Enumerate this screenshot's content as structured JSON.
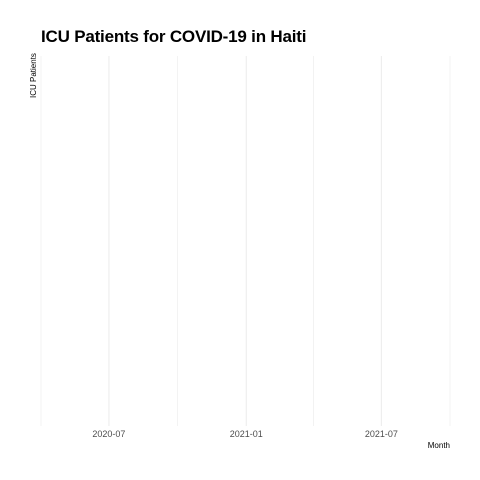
{
  "chart_data": {
    "type": "line",
    "title": "ICU Patients for COVID-19 in Haiti",
    "xlabel": "Month",
    "ylabel": "ICU Patients",
    "x_type": "date",
    "xlim": [
      "2020-04-01",
      "2021-10-01"
    ],
    "x_major_ticks": [
      "2020-07",
      "2021-01",
      "2021-07"
    ],
    "x_minor_gridlines": [
      "2020-04-01",
      "2020-10-01",
      "2021-04-01",
      "2021-10-01"
    ],
    "series": [],
    "grid": true,
    "legend": "none",
    "colors": {
      "gridline": "#ebebeb",
      "tick_text": "#4d4d4d"
    }
  }
}
